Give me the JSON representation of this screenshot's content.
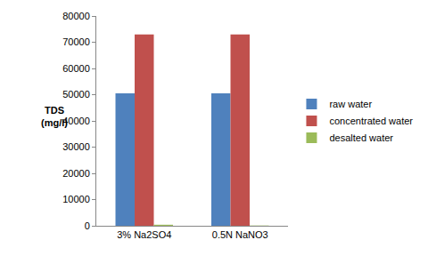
{
  "chart_data": {
    "type": "bar",
    "y_label": "TDS (mg/l)",
    "categories": [
      "3% Na2SO4",
      "0.5N NaNO3"
    ],
    "series": [
      {
        "name": "raw water",
        "color": "#4f81bd",
        "values": [
          50500,
          50500
        ]
      },
      {
        "name": "concentrated water",
        "color": "#c0504d",
        "values": [
          73000,
          73000
        ]
      },
      {
        "name": "desalted water",
        "color": "#9bbb59",
        "values": [
          400,
          100
        ]
      }
    ],
    "ylim": [
      0,
      80000
    ],
    "yticks": [
      0,
      10000,
      20000,
      30000,
      40000,
      50000,
      60000,
      70000,
      80000
    ],
    "grid": false,
    "legend": "right"
  }
}
